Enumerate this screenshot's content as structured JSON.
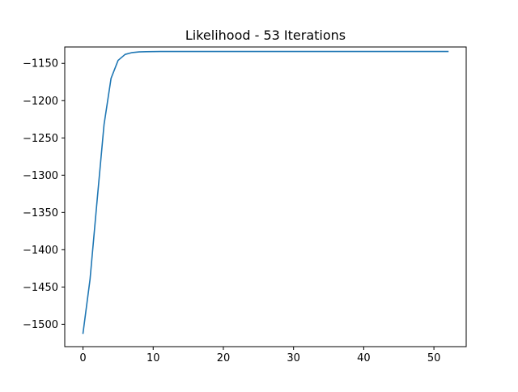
{
  "chart_data": {
    "type": "line",
    "title": "Likelihood - 53 Iterations",
    "xlabel": "",
    "ylabel": "",
    "xlim": [
      -2.6,
      54.6
    ],
    "ylim": [
      -1530,
      -1128
    ],
    "x_ticks": [
      0,
      10,
      20,
      30,
      40,
      50
    ],
    "x_tick_labels": [
      "0",
      "10",
      "20",
      "30",
      "40",
      "50"
    ],
    "y_ticks": [
      -1500,
      -1450,
      -1400,
      -1350,
      -1300,
      -1250,
      -1200,
      -1150
    ],
    "y_tick_labels": [
      "−1500",
      "−1450",
      "−1400",
      "−1350",
      "−1300",
      "−1250",
      "−1200",
      "−1150"
    ],
    "grid": false,
    "legend": "none",
    "series": [
      {
        "color": "#1f77b4",
        "x": [
          0,
          1,
          2,
          3,
          4,
          5,
          6,
          7,
          8,
          9,
          10,
          11,
          12,
          13,
          14,
          15,
          16,
          17,
          18,
          19,
          20,
          21,
          22,
          23,
          24,
          25,
          26,
          27,
          28,
          29,
          30,
          31,
          32,
          33,
          34,
          35,
          36,
          37,
          38,
          39,
          40,
          41,
          42,
          43,
          44,
          45,
          46,
          47,
          48,
          49,
          50,
          51,
          52
        ],
        "values": [
          -1512,
          -1440,
          -1335,
          -1232,
          -1170,
          -1146,
          -1138,
          -1135.5,
          -1134.6,
          -1134.3,
          -1134.2,
          -1134.1,
          -1134.1,
          -1134.1,
          -1134.1,
          -1134.1,
          -1134.1,
          -1134.1,
          -1134.1,
          -1134.1,
          -1134.1,
          -1134.1,
          -1134.1,
          -1134.1,
          -1134.1,
          -1134.1,
          -1134.1,
          -1134.1,
          -1134.1,
          -1134.1,
          -1134.1,
          -1134.1,
          -1134.1,
          -1134.1,
          -1134.1,
          -1134.1,
          -1134.1,
          -1134.1,
          -1134.1,
          -1134.1,
          -1134.1,
          -1134.1,
          -1134.1,
          -1134.1,
          -1134.1,
          -1134.1,
          -1134.1,
          -1134.1,
          -1134.1,
          -1134.1,
          -1134.1,
          -1134.1,
          -1134.1
        ]
      }
    ]
  }
}
